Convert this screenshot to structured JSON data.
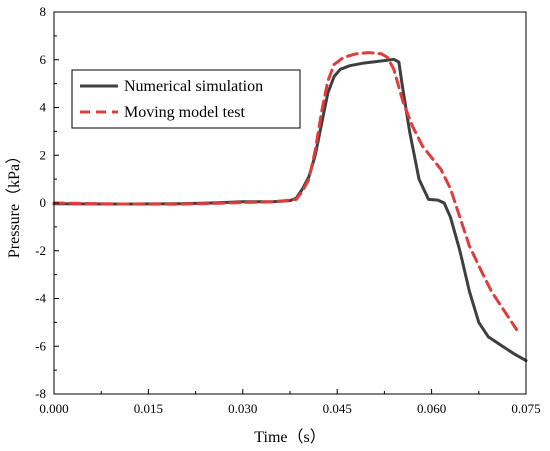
{
  "chart_data": {
    "type": "line",
    "xlabel": "Time（s）",
    "ylabel": "Pressure（kPa）",
    "xlim": [
      0.0,
      0.075
    ],
    "ylim": [
      -8,
      8
    ],
    "x_ticks": [
      "0.000",
      "0.015",
      "0.030",
      "0.045",
      "0.060",
      "0.075"
    ],
    "y_ticks": [
      "-8",
      "-6",
      "-4",
      "-2",
      "0",
      "2",
      "4",
      "6",
      "8"
    ],
    "grid": false,
    "legend_position": "upper-left",
    "series": [
      {
        "name": "Numerical simulation",
        "color": "#3f3f3f",
        "style": "solid",
        "points": [
          [
            0.0,
            -0.03
          ],
          [
            0.01,
            -0.04
          ],
          [
            0.02,
            -0.03
          ],
          [
            0.025,
            0.0
          ],
          [
            0.03,
            0.05
          ],
          [
            0.035,
            0.06
          ],
          [
            0.0375,
            0.1
          ],
          [
            0.0385,
            0.2
          ],
          [
            0.0395,
            0.6
          ],
          [
            0.0405,
            1.1
          ],
          [
            0.0415,
            2.0
          ],
          [
            0.0425,
            3.3
          ],
          [
            0.0435,
            4.6
          ],
          [
            0.0445,
            5.3
          ],
          [
            0.0455,
            5.6
          ],
          [
            0.047,
            5.75
          ],
          [
            0.049,
            5.85
          ],
          [
            0.051,
            5.92
          ],
          [
            0.053,
            5.98
          ],
          [
            0.054,
            6.02
          ],
          [
            0.0548,
            5.9
          ],
          [
            0.0553,
            5.0
          ],
          [
            0.0565,
            3.0
          ],
          [
            0.058,
            1.0
          ],
          [
            0.0595,
            0.15
          ],
          [
            0.061,
            0.12
          ],
          [
            0.062,
            0.0
          ],
          [
            0.063,
            -0.6
          ],
          [
            0.0645,
            -2.0
          ],
          [
            0.066,
            -3.7
          ],
          [
            0.0675,
            -5.0
          ],
          [
            0.069,
            -5.6
          ],
          [
            0.071,
            -5.95
          ],
          [
            0.073,
            -6.3
          ],
          [
            0.075,
            -6.6
          ]
        ]
      },
      {
        "name": "Moving model test",
        "color": "#e03c3c",
        "style": "dashed",
        "points": [
          [
            0.0,
            0.0
          ],
          [
            0.01,
            -0.04
          ],
          [
            0.02,
            -0.05
          ],
          [
            0.025,
            -0.02
          ],
          [
            0.03,
            0.02
          ],
          [
            0.035,
            0.05
          ],
          [
            0.0385,
            0.15
          ],
          [
            0.0395,
            0.5
          ],
          [
            0.0405,
            1.0
          ],
          [
            0.0415,
            2.2
          ],
          [
            0.0425,
            3.8
          ],
          [
            0.0435,
            5.1
          ],
          [
            0.0445,
            5.8
          ],
          [
            0.046,
            6.1
          ],
          [
            0.048,
            6.25
          ],
          [
            0.05,
            6.3
          ],
          [
            0.052,
            6.25
          ],
          [
            0.053,
            6.1
          ],
          [
            0.054,
            5.6
          ],
          [
            0.0555,
            4.2
          ],
          [
            0.057,
            3.2
          ],
          [
            0.0585,
            2.4
          ],
          [
            0.06,
            1.9
          ],
          [
            0.0615,
            1.4
          ],
          [
            0.063,
            0.6
          ],
          [
            0.0645,
            -0.6
          ],
          [
            0.066,
            -1.8
          ],
          [
            0.068,
            -2.9
          ],
          [
            0.0695,
            -3.7
          ],
          [
            0.071,
            -4.3
          ],
          [
            0.0725,
            -4.9
          ],
          [
            0.0735,
            -5.3
          ]
        ]
      }
    ]
  }
}
